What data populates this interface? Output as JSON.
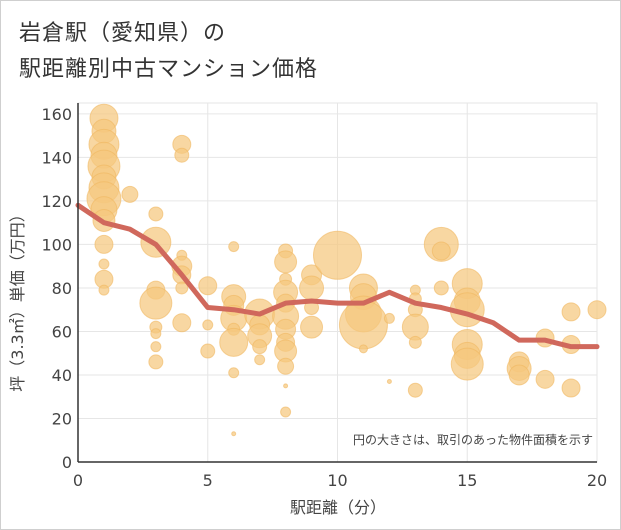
{
  "title_line1": "岩倉駅（愛知県）の",
  "title_line2": "駅距離別中古マンション価格",
  "chart_data": {
    "type": "scatter",
    "xlabel": "駅距離（分）",
    "ylabel": "坪（3.3㎡）単価（万円）",
    "xlim": [
      0,
      20
    ],
    "ylim": [
      0,
      165
    ],
    "x_ticks": [
      0,
      5,
      10,
      15,
      20
    ],
    "y_ticks": [
      0,
      20,
      40,
      60,
      80,
      100,
      120,
      140,
      160
    ],
    "grid": true,
    "annotation": "円の大きさは、取引のあった物件面積を示す",
    "colors": {
      "bubble": "#f5c77e",
      "bubble_edge": "#f0b860",
      "line": "#d0685c",
      "grid": "#e6e6e6"
    },
    "series": [
      {
        "kind": "bubbles",
        "points": [
          {
            "x": 1,
            "y": 158,
            "s": 14
          },
          {
            "x": 1,
            "y": 152,
            "s": 12
          },
          {
            "x": 1,
            "y": 146,
            "s": 15
          },
          {
            "x": 1,
            "y": 141,
            "s": 13
          },
          {
            "x": 1,
            "y": 136,
            "s": 16
          },
          {
            "x": 1,
            "y": 131,
            "s": 12
          },
          {
            "x": 1,
            "y": 126,
            "s": 15
          },
          {
            "x": 1,
            "y": 121,
            "s": 17
          },
          {
            "x": 1,
            "y": 116,
            "s": 13
          },
          {
            "x": 1,
            "y": 111,
            "s": 11
          },
          {
            "x": 1,
            "y": 100,
            "s": 9
          },
          {
            "x": 1,
            "y": 91,
            "s": 5
          },
          {
            "x": 1,
            "y": 84,
            "s": 9
          },
          {
            "x": 1,
            "y": 79,
            "s": 5
          },
          {
            "x": 2,
            "y": 123,
            "s": 8
          },
          {
            "x": 3,
            "y": 114,
            "s": 7
          },
          {
            "x": 3,
            "y": 101,
            "s": 15
          },
          {
            "x": 3,
            "y": 79,
            "s": 9
          },
          {
            "x": 3,
            "y": 73,
            "s": 16
          },
          {
            "x": 3,
            "y": 62,
            "s": 6
          },
          {
            "x": 3,
            "y": 59,
            "s": 5
          },
          {
            "x": 3,
            "y": 53,
            "s": 5
          },
          {
            "x": 3,
            "y": 46,
            "s": 7
          },
          {
            "x": 4,
            "y": 146,
            "s": 9
          },
          {
            "x": 4,
            "y": 141,
            "s": 7
          },
          {
            "x": 4,
            "y": 95,
            "s": 5
          },
          {
            "x": 4,
            "y": 90,
            "s": 10
          },
          {
            "x": 4,
            "y": 86,
            "s": 9
          },
          {
            "x": 4,
            "y": 80,
            "s": 6
          },
          {
            "x": 4,
            "y": 64,
            "s": 9
          },
          {
            "x": 5,
            "y": 81,
            "s": 9
          },
          {
            "x": 5,
            "y": 63,
            "s": 5
          },
          {
            "x": 5,
            "y": 51,
            "s": 7
          },
          {
            "x": 6,
            "y": 99,
            "s": 5
          },
          {
            "x": 6,
            "y": 76,
            "s": 12
          },
          {
            "x": 6,
            "y": 72,
            "s": 10
          },
          {
            "x": 6,
            "y": 66,
            "s": 13
          },
          {
            "x": 6,
            "y": 61,
            "s": 6
          },
          {
            "x": 6,
            "y": 55,
            "s": 14
          },
          {
            "x": 6,
            "y": 41,
            "s": 5
          },
          {
            "x": 6,
            "y": 13,
            "s": 2
          },
          {
            "x": 7,
            "y": 68,
            "s": 15
          },
          {
            "x": 7,
            "y": 63,
            "s": 10
          },
          {
            "x": 7,
            "y": 58,
            "s": 12
          },
          {
            "x": 7,
            "y": 53,
            "s": 7
          },
          {
            "x": 7,
            "y": 47,
            "s": 5
          },
          {
            "x": 8,
            "y": 97,
            "s": 7
          },
          {
            "x": 8,
            "y": 92,
            "s": 11
          },
          {
            "x": 8,
            "y": 84,
            "s": 6
          },
          {
            "x": 8,
            "y": 78,
            "s": 12
          },
          {
            "x": 8,
            "y": 73,
            "s": 9
          },
          {
            "x": 8,
            "y": 67,
            "s": 13
          },
          {
            "x": 8,
            "y": 61,
            "s": 10
          },
          {
            "x": 8,
            "y": 55,
            "s": 9
          },
          {
            "x": 8,
            "y": 51,
            "s": 11
          },
          {
            "x": 8,
            "y": 44,
            "s": 8
          },
          {
            "x": 8,
            "y": 35,
            "s": 2
          },
          {
            "x": 8,
            "y": 23,
            "s": 5
          },
          {
            "x": 9,
            "y": 86,
            "s": 10
          },
          {
            "x": 9,
            "y": 80,
            "s": 12
          },
          {
            "x": 9,
            "y": 71,
            "s": 7
          },
          {
            "x": 9,
            "y": 62,
            "s": 11
          },
          {
            "x": 10,
            "y": 95,
            "s": 24
          },
          {
            "x": 11,
            "y": 80,
            "s": 14
          },
          {
            "x": 11,
            "y": 76,
            "s": 13
          },
          {
            "x": 11,
            "y": 68,
            "s": 18
          },
          {
            "x": 11,
            "y": 63,
            "s": 24
          },
          {
            "x": 11,
            "y": 52,
            "s": 4
          },
          {
            "x": 12,
            "y": 37,
            "s": 2
          },
          {
            "x": 12,
            "y": 66,
            "s": 5
          },
          {
            "x": 13,
            "y": 79,
            "s": 5
          },
          {
            "x": 13,
            "y": 75,
            "s": 6
          },
          {
            "x": 13,
            "y": 70,
            "s": 7
          },
          {
            "x": 13,
            "y": 62,
            "s": 13
          },
          {
            "x": 13,
            "y": 55,
            "s": 6
          },
          {
            "x": 13,
            "y": 33,
            "s": 7
          },
          {
            "x": 14,
            "y": 100,
            "s": 17
          },
          {
            "x": 14,
            "y": 97,
            "s": 9
          },
          {
            "x": 14,
            "y": 80,
            "s": 7
          },
          {
            "x": 15,
            "y": 82,
            "s": 15
          },
          {
            "x": 15,
            "y": 74,
            "s": 13
          },
          {
            "x": 15,
            "y": 70,
            "s": 17
          },
          {
            "x": 15,
            "y": 54,
            "s": 15
          },
          {
            "x": 15,
            "y": 49,
            "s": 13
          },
          {
            "x": 15,
            "y": 45,
            "s": 16
          },
          {
            "x": 17,
            "y": 46,
            "s": 10
          },
          {
            "x": 17,
            "y": 43,
            "s": 12
          },
          {
            "x": 17,
            "y": 40,
            "s": 10
          },
          {
            "x": 18,
            "y": 57,
            "s": 9
          },
          {
            "x": 18,
            "y": 38,
            "s": 9
          },
          {
            "x": 19,
            "y": 69,
            "s": 9
          },
          {
            "x": 19,
            "y": 54,
            "s": 9
          },
          {
            "x": 19,
            "y": 34,
            "s": 9
          },
          {
            "x": 20,
            "y": 70,
            "s": 9
          }
        ]
      },
      {
        "kind": "line",
        "points": [
          {
            "x": 0,
            "y": 118
          },
          {
            "x": 1,
            "y": 110
          },
          {
            "x": 2,
            "y": 107
          },
          {
            "x": 3,
            "y": 100
          },
          {
            "x": 4,
            "y": 86
          },
          {
            "x": 5,
            "y": 71
          },
          {
            "x": 6,
            "y": 70
          },
          {
            "x": 7,
            "y": 68
          },
          {
            "x": 8,
            "y": 73
          },
          {
            "x": 9,
            "y": 74
          },
          {
            "x": 10,
            "y": 73
          },
          {
            "x": 11,
            "y": 73
          },
          {
            "x": 12,
            "y": 78
          },
          {
            "x": 13,
            "y": 73
          },
          {
            "x": 14,
            "y": 71
          },
          {
            "x": 15,
            "y": 68
          },
          {
            "x": 16,
            "y": 64
          },
          {
            "x": 17,
            "y": 56
          },
          {
            "x": 18,
            "y": 56
          },
          {
            "x": 19,
            "y": 53
          },
          {
            "x": 20,
            "y": 53
          }
        ]
      }
    ]
  }
}
